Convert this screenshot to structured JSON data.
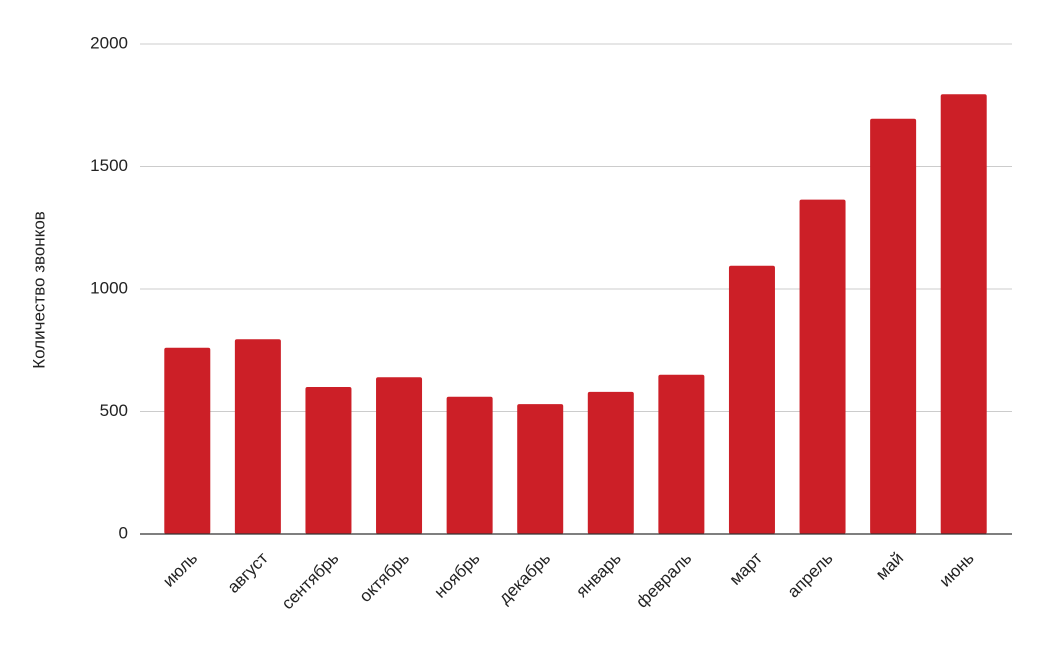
{
  "chart_data": {
    "type": "bar",
    "y_label": "Количество звонков",
    "categories": [
      "июль",
      "август",
      "сентябрь",
      "октябрь",
      "ноябрь",
      "декабрь",
      "январь",
      "февраль",
      "март",
      "апрель",
      "май",
      "июнь"
    ],
    "values": [
      760,
      795,
      600,
      640,
      560,
      530,
      580,
      650,
      1095,
      1365,
      1695,
      1795
    ],
    "color": "#cc1f27",
    "ylim": [
      0,
      2000
    ],
    "yticks": [
      0,
      500,
      1000,
      1500,
      2000
    ],
    "grid": true
  }
}
